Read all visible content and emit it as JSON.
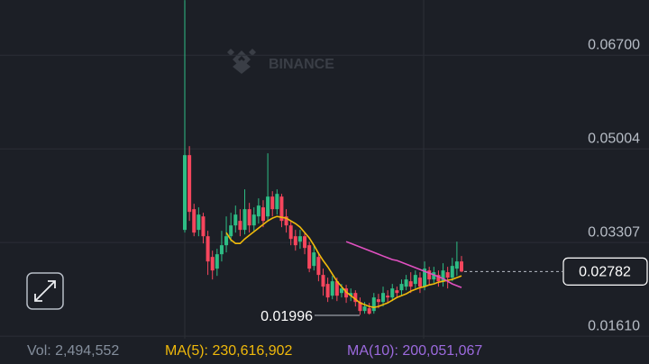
{
  "chart_data": {
    "type": "candlestick",
    "watermark": "BINANCE",
    "up_color": "#2ebd85",
    "down_color": "#f6465d",
    "ylim": [
      0.0157,
      0.077
    ],
    "yticks": [
      {
        "value": 0.0161,
        "label": "0.01610"
      },
      0.03307,
      0.05004,
      {
        "value": 0.067,
        "label": "0.06700"
      }
    ],
    "grid": true,
    "open": [
      0.03536,
      0.0489,
      0.03911,
      0.03536,
      0.0378,
      0.03421,
      0.03046,
      0.02834,
      0.03095,
      0.03258,
      0.03421,
      0.03617,
      0.03699,
      0.03536,
      0.03911,
      0.03617,
      0.0378,
      0.03944,
      0.0378,
      0.04139,
      0.03911,
      0.04139,
      0.0378,
      0.03617,
      0.03421,
      0.03323,
      0.03421,
      0.03258,
      0.02883,
      0.03046,
      0.0272,
      0.02557,
      0.02344,
      0.02605,
      0.02393,
      0.02475,
      0.02344,
      0.02393,
      0.0223,
      0.02067,
      0.02116,
      0.02067,
      0.02279,
      0.0223,
      0.02344,
      0.02312,
      0.02442,
      0.02442,
      0.02508,
      0.02605,
      0.02557,
      0.02671,
      0.02508,
      0.02801,
      0.02638,
      0.0272,
      0.02605,
      0.02769,
      0.02671,
      0.02834,
      0.02964
    ],
    "high": [
      0.07697,
      0.05053,
      0.04009,
      0.03944,
      0.03846,
      0.03519,
      0.0316,
      0.03193,
      0.03519,
      0.0378,
      0.03846,
      0.03976,
      0.03911,
      0.0427,
      0.04025,
      0.03944,
      0.04107,
      0.04074,
      0.04923,
      0.04237,
      0.0427,
      0.04188,
      0.03911,
      0.03699,
      0.03536,
      0.03536,
      0.03487,
      0.03323,
      0.03258,
      0.03128,
      0.02834,
      0.02671,
      0.02703,
      0.02671,
      0.02557,
      0.0254,
      0.02475,
      0.02442,
      0.02312,
      0.0223,
      0.02214,
      0.02393,
      0.02377,
      0.02508,
      0.02442,
      0.02557,
      0.02508,
      0.02638,
      0.0272,
      0.02769,
      0.02801,
      0.02769,
      0.02964,
      0.02867,
      0.02867,
      0.02801,
      0.02932,
      0.02867,
      0.0303,
      0.03323,
      0.03062
    ],
    "low": [
      0.03487,
      0.03699,
      0.03421,
      0.03421,
      0.03291,
      0.0272,
      0.02638,
      0.02703,
      0.02964,
      0.03128,
      0.03323,
      0.03487,
      0.03421,
      0.03454,
      0.03487,
      0.03519,
      0.0365,
      0.03585,
      0.03699,
      0.0378,
      0.03813,
      0.03585,
      0.03487,
      0.03258,
      0.0316,
      0.03193,
      0.03095,
      0.02769,
      0.02801,
      0.02605,
      0.02344,
      0.0223,
      0.02279,
      0.02246,
      0.02312,
      0.02214,
      0.02246,
      0.02149,
      0.01996,
      0.02018,
      0.02002,
      0.02018,
      0.02116,
      0.02149,
      0.02214,
      0.02246,
      0.02312,
      0.02344,
      0.02442,
      0.02393,
      0.02475,
      0.02393,
      0.02442,
      0.0254,
      0.02573,
      0.02508,
      0.02508,
      0.02475,
      0.02605,
      0.02703,
      0.02769
    ],
    "close": [
      0.0489,
      0.03862,
      0.03487,
      0.03813,
      0.03421,
      0.02964,
      0.02801,
      0.03095,
      0.03258,
      0.03421,
      0.03617,
      0.03813,
      0.03536,
      0.03911,
      0.03617,
      0.03813,
      0.03976,
      0.03699,
      0.04139,
      0.03911,
      0.04188,
      0.03699,
      0.03617,
      0.03372,
      0.03258,
      0.03421,
      0.03209,
      0.02834,
      0.03128,
      0.0272,
      0.02508,
      0.02312,
      0.02605,
      0.02344,
      0.02475,
      0.02312,
      0.02393,
      0.0223,
      0.02067,
      0.02149,
      0.02018,
      0.02312,
      0.0223,
      0.02393,
      0.02312,
      0.02475,
      0.02393,
      0.02557,
      0.02638,
      0.02508,
      0.0272,
      0.02508,
      0.02834,
      0.02638,
      0.02769,
      0.02605,
      0.02801,
      0.02671,
      0.02883,
      0.02964,
      0.02782
    ],
    "series": [
      {
        "color": "#f0b90b",
        "values": [
          null,
          null,
          null,
          null,
          null,
          null,
          null,
          null,
          null,
          0.03487,
          0.03356,
          0.03291,
          0.03291,
          0.03372,
          0.03438,
          0.03503,
          0.03568,
          0.03634,
          0.03699,
          0.03748,
          0.0378,
          0.03764,
          0.03748,
          0.03699,
          0.0365,
          0.03585,
          0.03487,
          0.03389,
          0.03258,
          0.03111,
          0.02981,
          0.02867,
          0.02736,
          0.02605,
          0.02508,
          0.0241,
          0.02344,
          0.02279,
          0.02214,
          0.02181,
          0.02149,
          0.02132,
          0.02149,
          0.02181,
          0.02214,
          0.02263,
          0.02312,
          0.02344,
          0.02377,
          0.02426,
          0.02459,
          0.02491,
          0.02508,
          0.0254,
          0.02557,
          0.02589,
          0.02605,
          0.02622,
          0.02638,
          0.02671,
          0.02703
        ]
      },
      {
        "color": "#e050c0",
        "values": [
          null,
          null,
          null,
          null,
          null,
          null,
          null,
          null,
          null,
          null,
          null,
          null,
          null,
          null,
          null,
          null,
          null,
          null,
          null,
          null,
          null,
          null,
          null,
          null,
          null,
          null,
          null,
          null,
          null,
          null,
          null,
          null,
          null,
          null,
          null,
          0.03323,
          0.03291,
          0.03258,
          0.03226,
          0.03193,
          0.0316,
          0.03128,
          0.03095,
          0.03062,
          0.0303,
          0.02997,
          0.02981,
          0.02948,
          0.02916,
          0.02883,
          0.0285,
          0.02818,
          0.02785,
          0.02752,
          0.0272,
          0.02687,
          0.02654,
          0.02605,
          0.02557,
          0.02524,
          0.02491
        ]
      }
    ],
    "info": [
      {
        "text": "Vol: 2,494,552",
        "color": "#848e9c"
      },
      {
        "text": "MA(5): 230,616,902",
        "color": "#f0b90b"
      },
      {
        "text": "MA(10): 200,051,067",
        "color": "#9c6ade"
      }
    ]
  }
}
